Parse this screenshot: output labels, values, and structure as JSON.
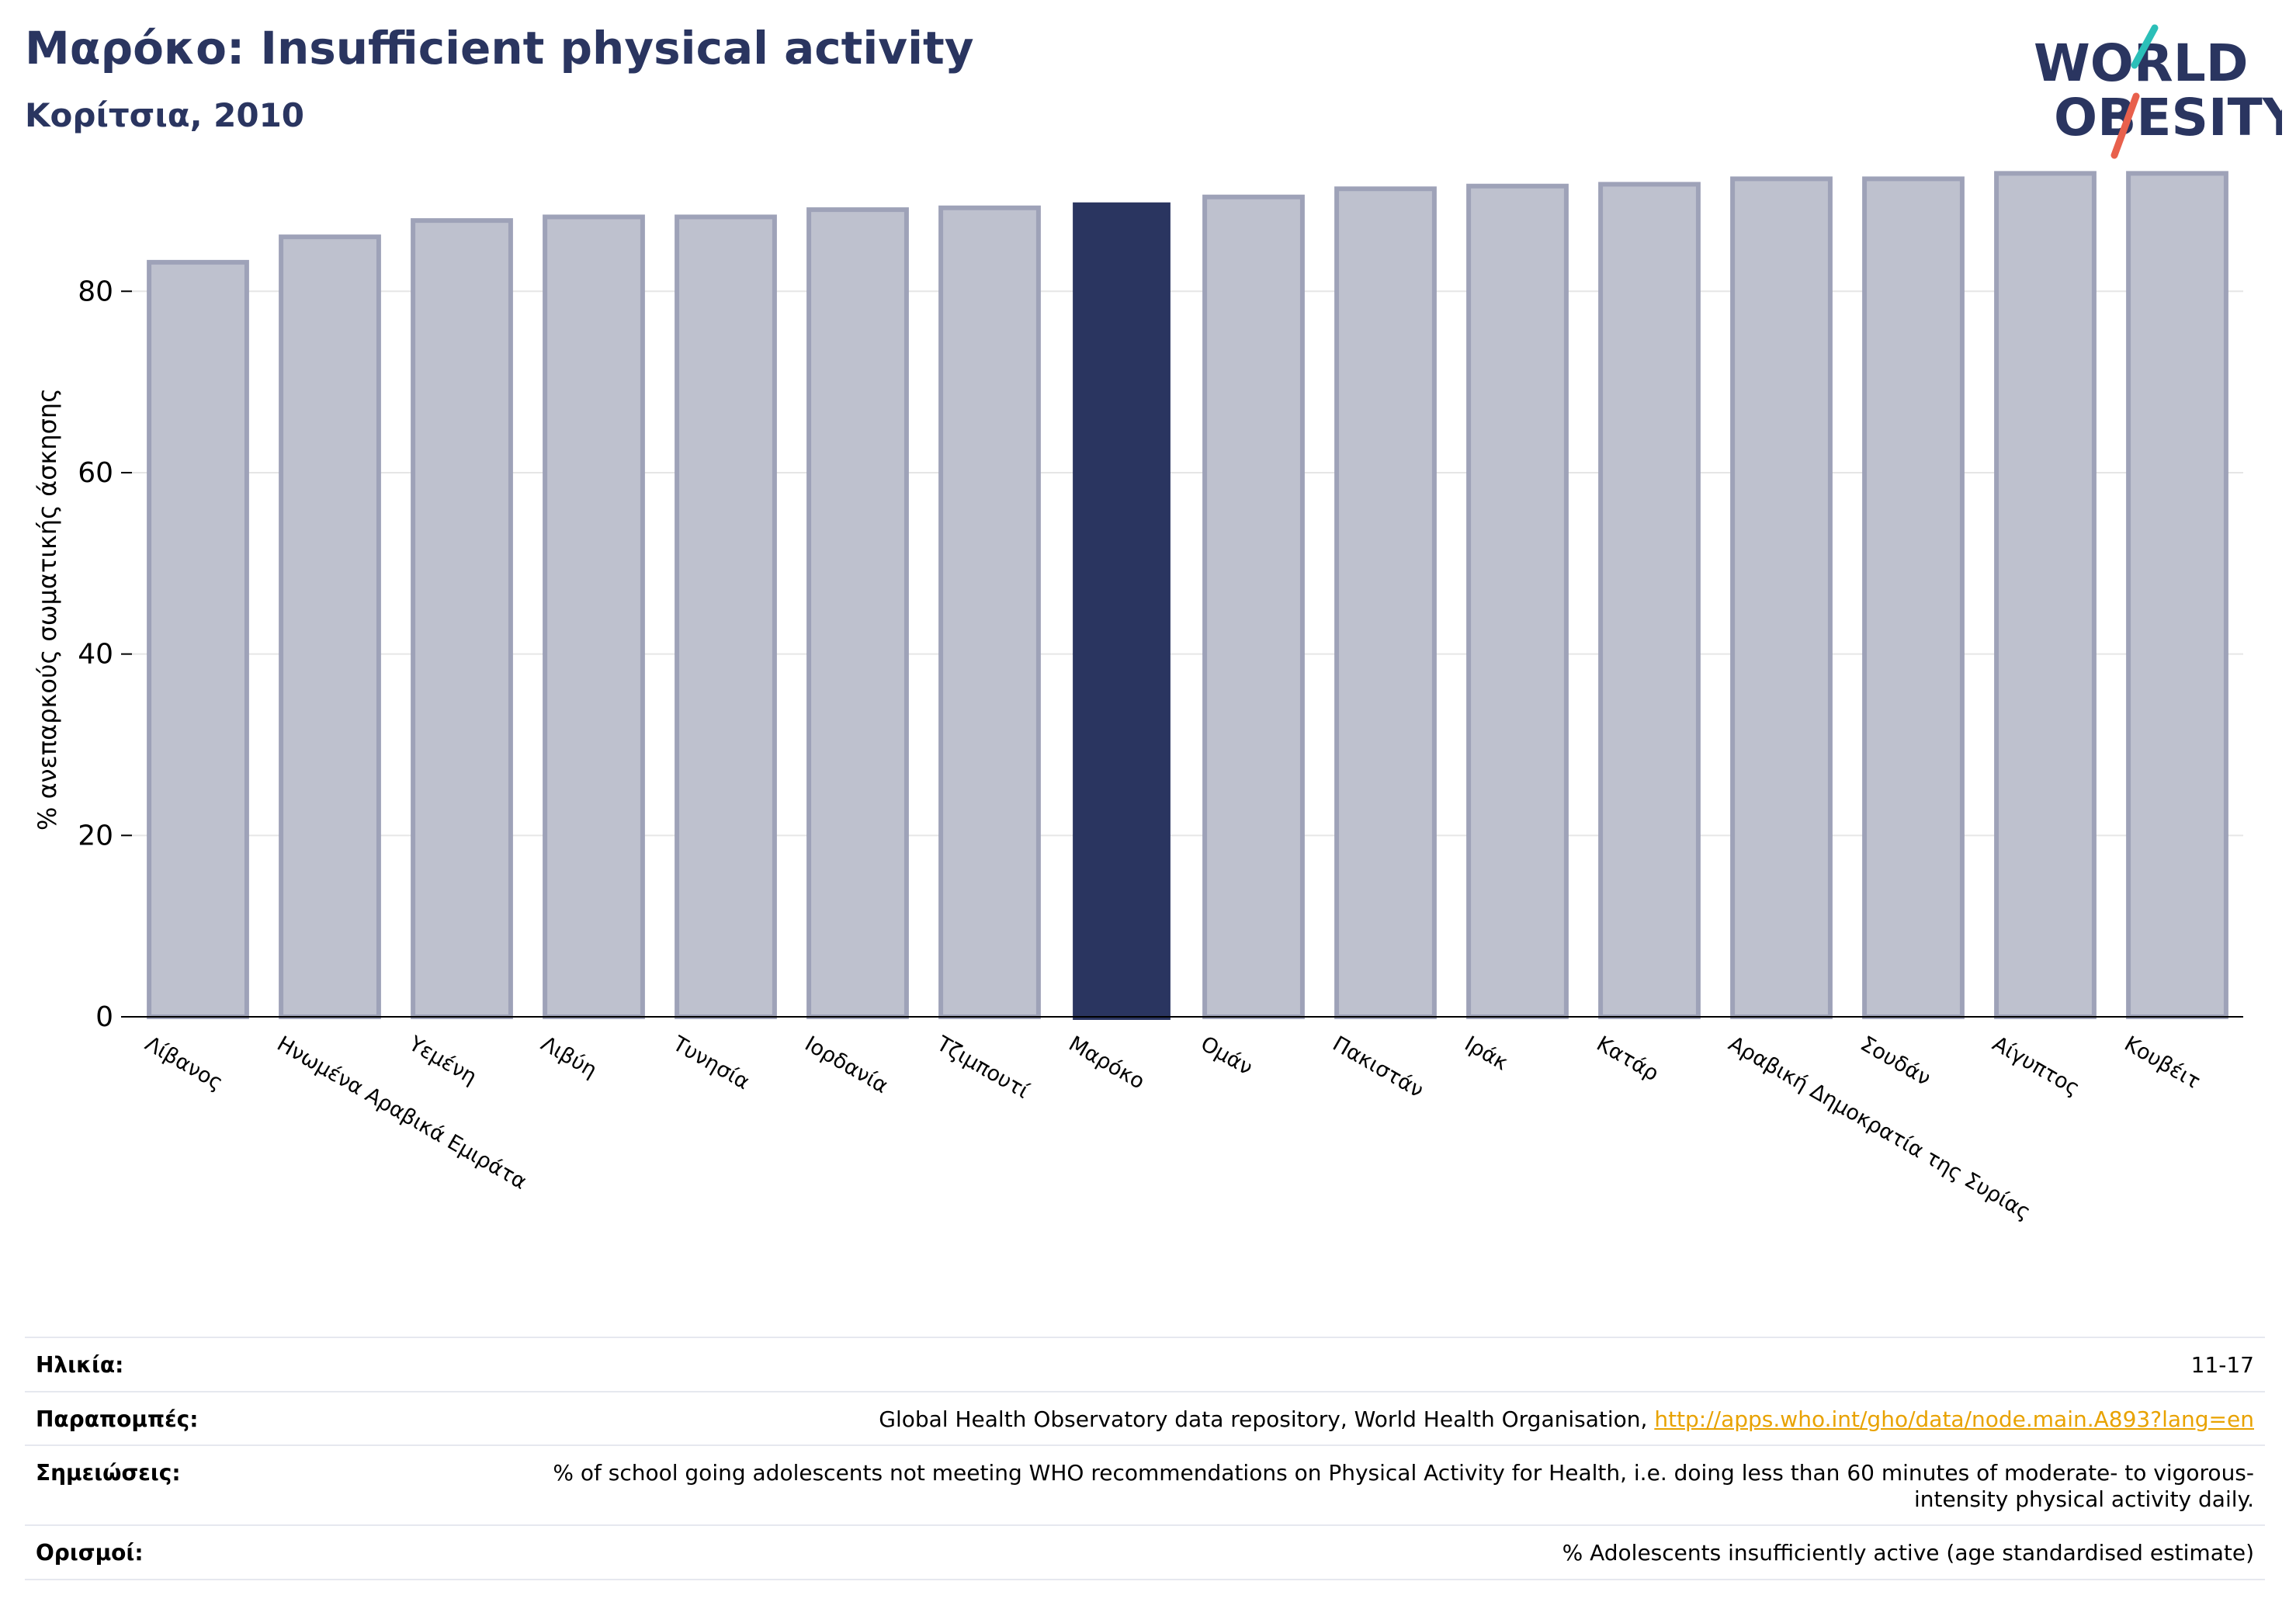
{
  "header": {
    "title": "Μαρόκο: Insufficient physical activity",
    "subtitle": "Κορίτσια, 2010"
  },
  "logo": {
    "line1": "WORLD",
    "line2": "OBESITY",
    "colors": {
      "text": "#2a3560",
      "slash_teal": "#2bbfb8",
      "slash_red": "#e8604c"
    }
  },
  "chart_data": {
    "type": "bar",
    "title": "Μαρόκο: Insufficient physical activity",
    "subtitle": "Κορίτσια, 2010",
    "ylabel": "% ανεπαρκούς σωματικής άσκησης",
    "xlabel": "",
    "ylim": [
      0,
      95
    ],
    "yticks": [
      0,
      20,
      40,
      60,
      80
    ],
    "grid": true,
    "highlight": "Μαρόκο",
    "colors": {
      "bar": "#bec1ce",
      "bar_edge": "#9ea2b8",
      "highlight": "#2a3560",
      "grid": "#e6e6e6"
    },
    "categories": [
      "Λίβανος",
      "Ηνωμένα Αραβικά Εμιράτα",
      "Υεμένη",
      "Λιβύη",
      "Τυνησία",
      "Ιορδανία",
      "Τζιμπουτί",
      "Μαρόκο",
      "Ομάν",
      "Πακιστάν",
      "Ιράκ",
      "Κατάρ",
      "Αραβική Δημοκρατία της Συρίας",
      "Σουδάν",
      "Αίγυπτος",
      "Κουβέιτ"
    ],
    "values": [
      83.2,
      86.0,
      87.8,
      88.2,
      88.2,
      89.0,
      89.2,
      89.8,
      90.4,
      91.3,
      91.6,
      91.8,
      92.4,
      92.4,
      93.0,
      93.0
    ]
  },
  "info": {
    "rows": [
      {
        "label": "Ηλικία:",
        "value": "11-17"
      },
      {
        "label": "Παραπομπές:",
        "value": "Global Health Observatory data repository, World Health Organisation, ",
        "link": "http://apps.who.int/gho/data/node.main.A893?lang=en"
      },
      {
        "label": "Σημειώσεις:",
        "value": "% of school going adolescents not meeting WHO recommendations on Physical Activity for Health, i.e. doing less than 60 minutes of moderate- to vigorous-intensity physical activity daily."
      },
      {
        "label": "Ορισμοί:",
        "value": "% Adolescents insufficiently active (age standardised estimate)"
      }
    ]
  }
}
